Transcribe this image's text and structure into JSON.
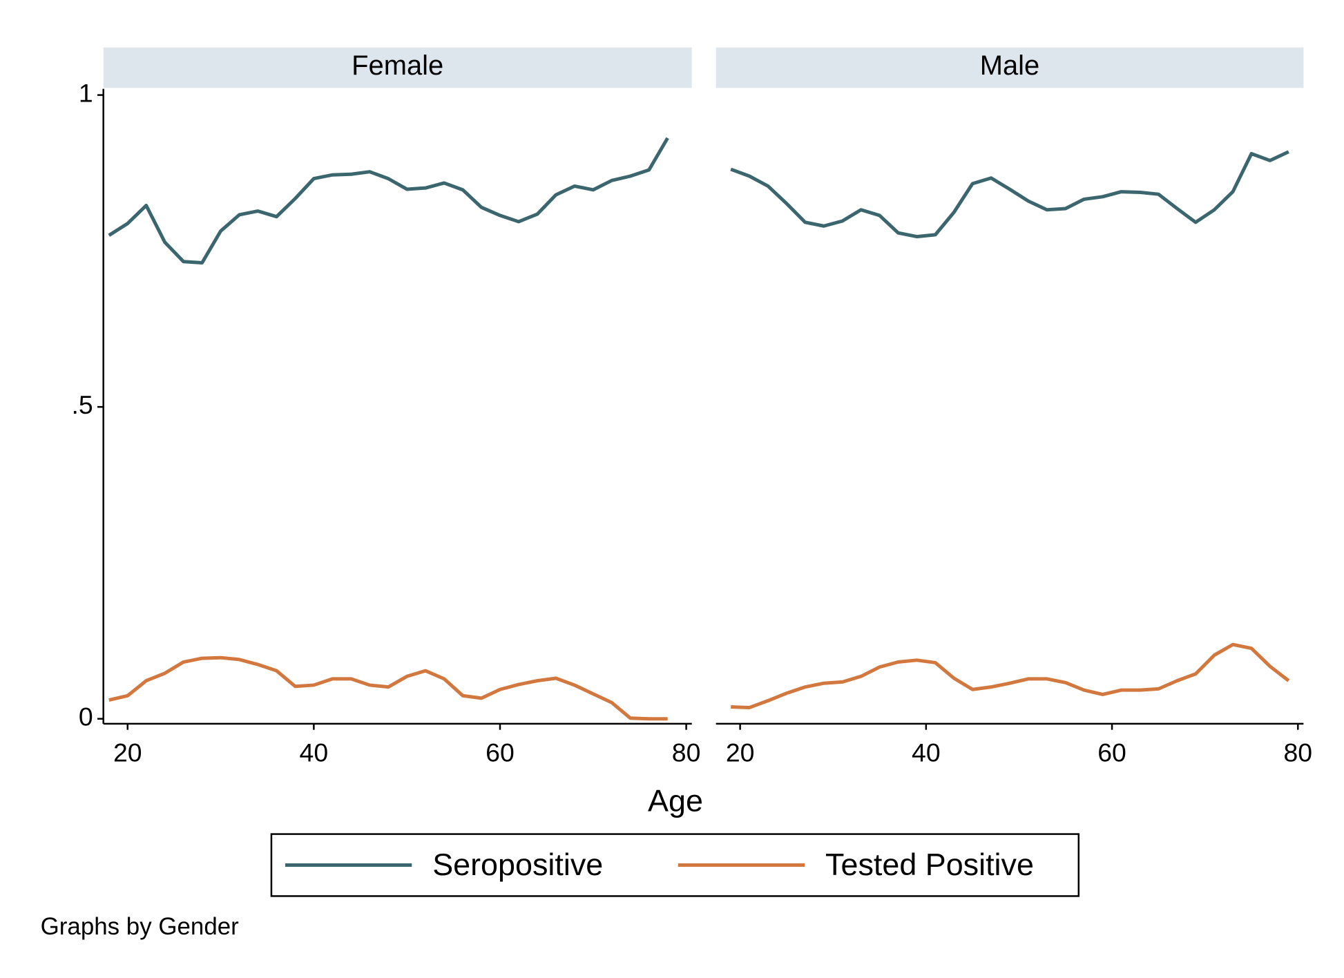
{
  "chart_data": [
    {
      "type": "line",
      "title": "Female",
      "x": [
        18,
        20,
        22,
        24,
        26,
        28,
        30,
        32,
        34,
        36,
        38,
        40,
        42,
        44,
        46,
        48,
        50,
        52,
        54,
        56,
        58,
        60,
        62,
        64,
        66,
        68,
        70,
        72,
        74,
        76,
        78
      ],
      "series": [
        {
          "name": "Seropositive",
          "color": "#3b666e",
          "values": [
            0.775,
            0.794,
            0.823,
            0.764,
            0.733,
            0.731,
            0.782,
            0.808,
            0.814,
            0.805,
            0.834,
            0.866,
            0.872,
            0.873,
            0.877,
            0.866,
            0.849,
            0.851,
            0.859,
            0.848,
            0.82,
            0.807,
            0.797,
            0.809,
            0.84,
            0.854,
            0.848,
            0.863,
            0.87,
            0.88,
            0.931
          ]
        },
        {
          "name": "Tested Positive",
          "color": "#d2783f",
          "values": [
            0.03,
            0.037,
            0.061,
            0.073,
            0.091,
            0.097,
            0.098,
            0.095,
            0.087,
            0.077,
            0.052,
            0.054,
            0.064,
            0.064,
            0.054,
            0.051,
            0.068,
            0.077,
            0.064,
            0.037,
            0.033,
            0.047,
            0.055,
            0.061,
            0.065,
            0.054,
            0.04,
            0.026,
            0.001,
            0,
            0
          ]
        }
      ],
      "xlim": [
        17.4,
        80.6
      ],
      "xticks": [
        20,
        40,
        60,
        80
      ],
      "ylim": [
        -0.008,
        1.01
      ],
      "yticks": [
        0,
        {
          "value": 0.5,
          "label": ".5"
        },
        1
      ]
    },
    {
      "type": "line",
      "title": "Male",
      "x": [
        19,
        21,
        23,
        25,
        27,
        29,
        31,
        33,
        35,
        37,
        39,
        41,
        43,
        45,
        47,
        49,
        51,
        53,
        55,
        57,
        59,
        61,
        63,
        65,
        67,
        69,
        71,
        73,
        75,
        77,
        79
      ],
      "series": [
        {
          "name": "Seropositive",
          "color": "#3b666e",
          "values": [
            0.881,
            0.87,
            0.854,
            0.826,
            0.796,
            0.79,
            0.798,
            0.816,
            0.807,
            0.779,
            0.773,
            0.776,
            0.812,
            0.858,
            0.867,
            0.849,
            0.83,
            0.816,
            0.818,
            0.833,
            0.837,
            0.845,
            0.844,
            0.841,
            0.818,
            0.796,
            0.816,
            0.845,
            0.906,
            0.895,
            0.909
          ]
        },
        {
          "name": "Tested Positive",
          "color": "#d2783f",
          "values": [
            0.019,
            0.018,
            0.029,
            0.041,
            0.051,
            0.057,
            0.059,
            0.068,
            0.083,
            0.091,
            0.094,
            0.09,
            0.065,
            0.047,
            0.051,
            0.057,
            0.064,
            0.064,
            0.058,
            0.046,
            0.039,
            0.046,
            0.046,
            0.048,
            0.061,
            0.072,
            0.102,
            0.119,
            0.113,
            0.084,
            0.061
          ]
        }
      ],
      "xlim": [
        17.4,
        80.6
      ],
      "xticks": [
        20,
        40,
        60,
        80
      ],
      "ylim": [
        -0.008,
        1.01
      ]
    }
  ],
  "x_label": "Age",
  "note": "Graphs by Gender"
}
